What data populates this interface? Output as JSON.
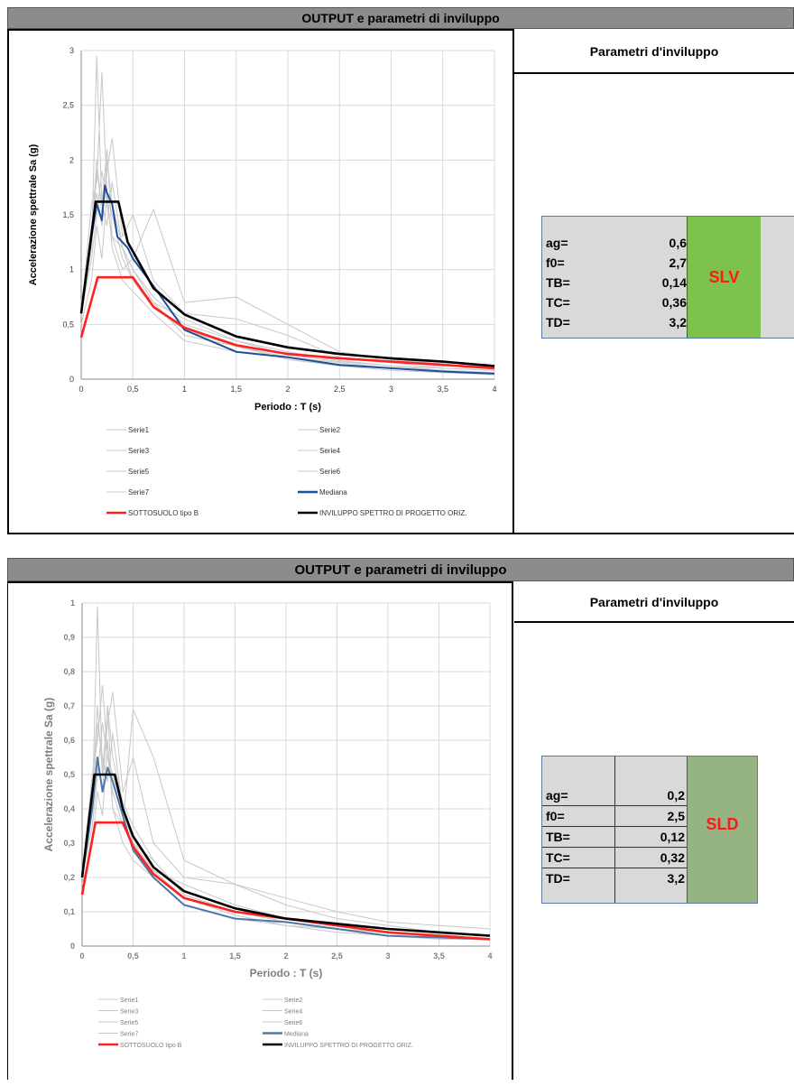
{
  "panels": [
    {
      "header": "OUTPUT e parametri di inviluppo",
      "side_title": "Parametri d'inviluppo",
      "params": [
        {
          "label": "ag=",
          "value": "0,6"
        },
        {
          "label": "f0=",
          "value": "2,7"
        },
        {
          "label": "TB=",
          "value": "0,14"
        },
        {
          "label": "TC=",
          "value": "0,36"
        },
        {
          "label": "TD=",
          "value": "3,2"
        }
      ],
      "state": "SLV",
      "state_color": "#7dc24b"
    },
    {
      "header": "OUTPUT e parametri di inviluppo",
      "side_title": "Parametri d'inviluppo",
      "params": [
        {
          "label": "ag=",
          "value": "0,2"
        },
        {
          "label": "f0=",
          "value": "2,5"
        },
        {
          "label": "TB=",
          "value": "0,12"
        },
        {
          "label": "TC=",
          "value": "0,32"
        },
        {
          "label": "TD=",
          "value": "3,2"
        }
      ],
      "state": "SLD",
      "state_color": "#96b382"
    }
  ],
  "chart_data": [
    {
      "type": "line",
      "xlabel": "Periodo : T (s)",
      "ylabel": "Accelerazione spettrale Sa (g)",
      "xlim": [
        0,
        4
      ],
      "ylim": [
        0,
        3
      ],
      "xticks": [
        "0",
        "0,5",
        "1",
        "1,5",
        "2",
        "2,5",
        "3",
        "3,5",
        "4"
      ],
      "yticks": [
        "0",
        "0,5",
        "1",
        "1,5",
        "2",
        "2,5",
        "3"
      ],
      "grid": true,
      "legend": [
        "Serie1",
        "Serie2",
        "Serie3",
        "Serie4",
        "Serie5",
        "Serie6",
        "Serie7",
        "Mediana",
        "SOTTOSUOLO tipo B",
        "INVILUPPO SPETTRO DI PROGETTO ORIZ."
      ],
      "series": [
        {
          "name": "Serie1",
          "color": "#c8c8c8",
          "x": [
            0,
            0.1,
            0.15,
            0.2,
            0.25,
            0.3,
            0.4,
            0.5,
            0.7,
            1,
            1.5,
            2,
            2.5,
            3,
            3.5,
            4
          ],
          "y": [
            0.6,
            1.2,
            2.95,
            1.6,
            2.1,
            1.3,
            1.2,
            1.0,
            0.75,
            0.5,
            0.35,
            0.25,
            0.17,
            0.12,
            0.1,
            0.08
          ]
        },
        {
          "name": "Serie2",
          "color": "#c8c8c8",
          "x": [
            0,
            0.1,
            0.15,
            0.2,
            0.25,
            0.3,
            0.4,
            0.5,
            0.7,
            1,
            1.5,
            2,
            2.5,
            3,
            3.5,
            4
          ],
          "y": [
            0.6,
            1.6,
            1.8,
            2.8,
            1.7,
            1.5,
            1.1,
            0.9,
            0.7,
            0.55,
            0.35,
            0.22,
            0.16,
            0.12,
            0.08,
            0.06
          ]
        },
        {
          "name": "Serie3",
          "color": "#c8c8c8",
          "x": [
            0,
            0.1,
            0.15,
            0.2,
            0.25,
            0.3,
            0.4,
            0.5,
            0.7,
            1,
            1.5,
            2,
            2.5,
            3,
            3.5,
            4
          ],
          "y": [
            0.7,
            1.3,
            2.0,
            1.5,
            1.9,
            2.2,
            1.3,
            1.5,
            0.9,
            0.6,
            0.55,
            0.4,
            0.2,
            0.15,
            0.1,
            0.08
          ]
        },
        {
          "name": "Serie4",
          "color": "#c8c8c8",
          "x": [
            0,
            0.1,
            0.15,
            0.2,
            0.25,
            0.3,
            0.4,
            0.5,
            0.7,
            1,
            1.5,
            2,
            2.5,
            3,
            3.5,
            4
          ],
          "y": [
            0.6,
            1.1,
            1.5,
            1.9,
            1.6,
            1.3,
            1.0,
            1.1,
            1.55,
            0.7,
            0.75,
            0.5,
            0.25,
            0.18,
            0.14,
            0.1
          ]
        },
        {
          "name": "Serie5",
          "color": "#c8c8c8",
          "x": [
            0,
            0.1,
            0.15,
            0.2,
            0.25,
            0.3,
            0.4,
            0.5,
            0.7,
            1,
            1.5,
            2,
            2.5,
            3,
            3.5,
            4
          ],
          "y": [
            0.5,
            0.9,
            1.4,
            1.1,
            1.7,
            1.2,
            0.9,
            0.8,
            0.6,
            0.35,
            0.25,
            0.2,
            0.15,
            0.1,
            0.07,
            0.05
          ]
        },
        {
          "name": "Serie6",
          "color": "#c8c8c8",
          "x": [
            0,
            0.1,
            0.15,
            0.2,
            0.25,
            0.3,
            0.4,
            0.5,
            0.7,
            1,
            1.5,
            2,
            2.5,
            3,
            3.5,
            4
          ],
          "y": [
            0.6,
            1.4,
            1.7,
            1.4,
            2.0,
            1.6,
            1.2,
            1.0,
            0.7,
            0.4,
            0.3,
            0.18,
            0.12,
            0.08,
            0.06,
            0.04
          ]
        },
        {
          "name": "Serie7",
          "color": "#c8c8c8",
          "x": [
            0,
            0.1,
            0.15,
            0.2,
            0.25,
            0.3,
            0.4,
            0.5,
            0.7,
            1,
            1.5,
            2,
            2.5,
            3,
            3.5,
            4
          ],
          "y": [
            0.7,
            1.2,
            1.9,
            1.6,
            1.4,
            1.8,
            1.2,
            0.9,
            0.65,
            0.45,
            0.3,
            0.2,
            0.13,
            0.1,
            0.08,
            0.06
          ]
        },
        {
          "name": "Mediana",
          "color": "#1f4e9c",
          "x": [
            0,
            0.1,
            0.15,
            0.2,
            0.23,
            0.25,
            0.3,
            0.35,
            0.45,
            0.5,
            0.7,
            1,
            1.5,
            2,
            2.5,
            3,
            3.5,
            4
          ],
          "y": [
            0.6,
            1.3,
            1.6,
            1.45,
            1.77,
            1.7,
            1.6,
            1.3,
            1.2,
            1.1,
            0.85,
            0.45,
            0.25,
            0.2,
            0.13,
            0.1,
            0.07,
            0.05
          ]
        },
        {
          "name": "SOTTOSUOLO tipo B",
          "color": "#ff2020",
          "x": [
            0,
            0.16,
            0.5,
            0.7,
            1,
            1.5,
            2,
            2.5,
            3,
            3.5,
            4
          ],
          "y": [
            0.38,
            0.93,
            0.93,
            0.66,
            0.47,
            0.31,
            0.23,
            0.19,
            0.16,
            0.13,
            0.1
          ]
        },
        {
          "name": "INVILUPPO SPETTRO DI PROGETTO ORIZ.",
          "color": "#000000",
          "x": [
            0,
            0.14,
            0.36,
            0.45,
            0.7,
            1,
            1.5,
            2,
            2.5,
            3,
            3.5,
            4
          ],
          "y": [
            0.6,
            1.62,
            1.62,
            1.25,
            0.83,
            0.59,
            0.39,
            0.29,
            0.23,
            0.19,
            0.16,
            0.12
          ]
        }
      ]
    },
    {
      "type": "line",
      "xlabel": "Periodo : T (s)",
      "ylabel": "Accelerazione spettrale Sa (g)",
      "xlim": [
        0,
        4
      ],
      "ylim": [
        0,
        1
      ],
      "xticks": [
        "0",
        "0,5",
        "1",
        "1,5",
        "2",
        "2,5",
        "3",
        "3,5",
        "4"
      ],
      "yticks": [
        "0",
        "0,1",
        "0,2",
        "0,3",
        "0,4",
        "0,5",
        "0,6",
        "0,7",
        "0,8",
        "0,9",
        "1"
      ],
      "grid": true,
      "legend": [
        "Serie1",
        "Serie2",
        "Serie3",
        "Serie4",
        "Serie5",
        "Serie6",
        "Serie7",
        "Mediana",
        "SOTTOSUOLO tipo B",
        "INVILUPPO SPETTRO DI PROGETTO ORIZ."
      ],
      "series": [
        {
          "name": "Serie1",
          "color": "#c8c8c8",
          "x": [
            0,
            0.1,
            0.15,
            0.2,
            0.25,
            0.3,
            0.4,
            0.5,
            0.7,
            1,
            1.5,
            2,
            2.5,
            3,
            3.5,
            4
          ],
          "y": [
            0.2,
            0.4,
            0.99,
            0.5,
            0.7,
            0.4,
            0.35,
            0.3,
            0.25,
            0.15,
            0.1,
            0.08,
            0.06,
            0.04,
            0.03,
            0.02
          ]
        },
        {
          "name": "Serie2",
          "color": "#c8c8c8",
          "x": [
            0,
            0.1,
            0.15,
            0.2,
            0.25,
            0.3,
            0.4,
            0.5,
            0.7,
            1,
            1.5,
            2,
            2.5,
            3,
            3.5,
            4
          ],
          "y": [
            0.2,
            0.5,
            0.6,
            0.76,
            0.55,
            0.5,
            0.4,
            0.3,
            0.22,
            0.18,
            0.12,
            0.08,
            0.06,
            0.04,
            0.03,
            0.02
          ]
        },
        {
          "name": "Serie3",
          "color": "#c8c8c8",
          "x": [
            0,
            0.1,
            0.15,
            0.2,
            0.25,
            0.3,
            0.4,
            0.5,
            0.7,
            1,
            1.5,
            2,
            2.5,
            3,
            3.5,
            4
          ],
          "y": [
            0.22,
            0.45,
            0.7,
            0.5,
            0.65,
            0.74,
            0.45,
            0.55,
            0.3,
            0.2,
            0.18,
            0.12,
            0.08,
            0.06,
            0.04,
            0.03
          ]
        },
        {
          "name": "Serie4",
          "color": "#c8c8c8",
          "x": [
            0,
            0.1,
            0.15,
            0.2,
            0.25,
            0.3,
            0.4,
            0.5,
            0.7,
            1,
            1.5,
            2,
            2.5,
            3,
            3.5,
            4
          ],
          "y": [
            0.2,
            0.35,
            0.5,
            0.65,
            0.55,
            0.45,
            0.35,
            0.69,
            0.55,
            0.25,
            0.18,
            0.14,
            0.1,
            0.07,
            0.06,
            0.05
          ]
        },
        {
          "name": "Serie5",
          "color": "#c8c8c8",
          "x": [
            0,
            0.1,
            0.15,
            0.2,
            0.25,
            0.3,
            0.4,
            0.5,
            0.7,
            1,
            1.5,
            2,
            2.5,
            3,
            3.5,
            4
          ],
          "y": [
            0.18,
            0.3,
            0.45,
            0.38,
            0.6,
            0.4,
            0.3,
            0.25,
            0.2,
            0.12,
            0.08,
            0.06,
            0.04,
            0.03,
            0.02,
            0.02
          ]
        },
        {
          "name": "Serie6",
          "color": "#c8c8c8",
          "x": [
            0,
            0.1,
            0.15,
            0.2,
            0.25,
            0.3,
            0.4,
            0.5,
            0.7,
            1,
            1.5,
            2,
            2.5,
            3,
            3.5,
            4
          ],
          "y": [
            0.2,
            0.45,
            0.55,
            0.45,
            0.7,
            0.55,
            0.42,
            0.35,
            0.25,
            0.15,
            0.1,
            0.07,
            0.05,
            0.04,
            0.03,
            0.02
          ]
        },
        {
          "name": "Serie7",
          "color": "#c8c8c8",
          "x": [
            0,
            0.1,
            0.15,
            0.2,
            0.25,
            0.3,
            0.4,
            0.5,
            0.7,
            1,
            1.5,
            2,
            2.5,
            3,
            3.5,
            4
          ],
          "y": [
            0.22,
            0.4,
            0.65,
            0.55,
            0.48,
            0.62,
            0.4,
            0.3,
            0.22,
            0.14,
            0.09,
            0.06,
            0.05,
            0.04,
            0.03,
            0.02
          ]
        },
        {
          "name": "Mediana",
          "color": "#4a78a8",
          "x": [
            0,
            0.1,
            0.15,
            0.2,
            0.25,
            0.3,
            0.4,
            0.5,
            0.7,
            1,
            1.5,
            2,
            2.5,
            3,
            3.5,
            4
          ],
          "y": [
            0.2,
            0.4,
            0.55,
            0.45,
            0.52,
            0.48,
            0.38,
            0.28,
            0.2,
            0.12,
            0.08,
            0.07,
            0.05,
            0.03,
            0.025,
            0.02
          ]
        },
        {
          "name": "SOTTOSUOLO tipo B",
          "color": "#ff2020",
          "x": [
            0,
            0.13,
            0.4,
            0.5,
            0.7,
            1,
            1.5,
            2,
            2.5,
            3,
            3.5,
            4
          ],
          "y": [
            0.15,
            0.36,
            0.36,
            0.29,
            0.21,
            0.14,
            0.1,
            0.08,
            0.06,
            0.04,
            0.03,
            0.02
          ]
        },
        {
          "name": "INVILUPPO SPETTRO DI PROGETTO ORIZ.",
          "color": "#000000",
          "x": [
            0,
            0.12,
            0.32,
            0.4,
            0.5,
            0.7,
            1,
            1.5,
            2,
            2.5,
            3,
            3.5,
            4
          ],
          "y": [
            0.2,
            0.5,
            0.5,
            0.4,
            0.32,
            0.23,
            0.16,
            0.11,
            0.08,
            0.065,
            0.05,
            0.04,
            0.03
          ]
        }
      ]
    }
  ]
}
